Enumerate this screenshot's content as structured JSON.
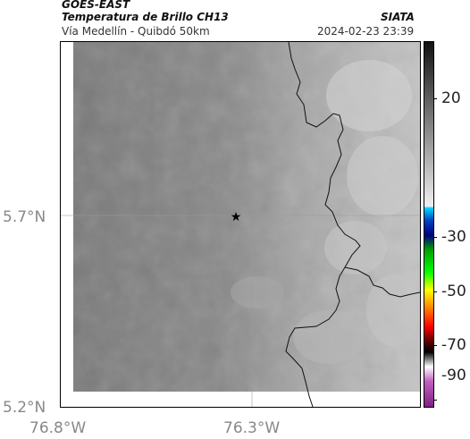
{
  "header": {
    "source": "GOES-EAST",
    "product": "Temperatura de Brillo CH13",
    "region": "Vía Medellín - Quibdó 50km",
    "agency": "SIATA",
    "timestamp": "2024-02-23 23:39"
  },
  "map": {
    "lat_labels": [
      "5.7°N",
      "5.2°N"
    ],
    "lon_labels": [
      "76.8°W",
      "76.3°W"
    ],
    "marker": "star-icon"
  },
  "colorbar": {
    "labels": [
      "20",
      "-30",
      "-50",
      "-70",
      "-90"
    ]
  },
  "colors": {
    "background_gray": "#777777",
    "cloud_light": "#c8c8c8",
    "border_line": "#000000"
  }
}
